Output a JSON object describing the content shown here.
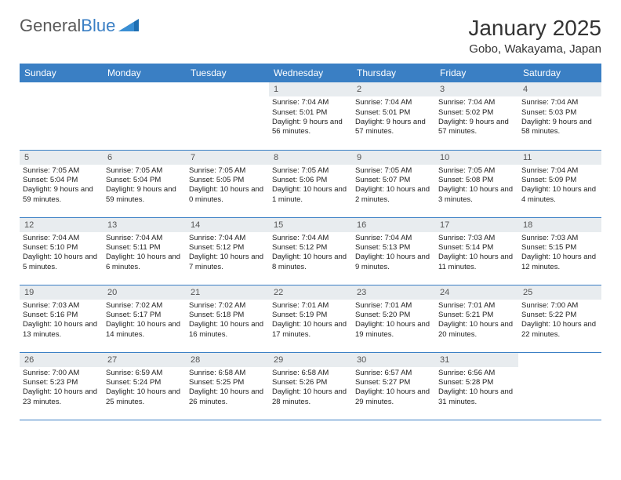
{
  "logo": {
    "text1": "General",
    "text2": "Blue",
    "icon_color": "#1f6fb2"
  },
  "title": "January 2025",
  "subtitle": "Gobo, Wakayama, Japan",
  "colors": {
    "header_bg": "#3a7fc4",
    "daynum_bg": "#e8ecef",
    "rule": "#3a7fc4"
  },
  "day_headers": [
    "Sunday",
    "Monday",
    "Tuesday",
    "Wednesday",
    "Thursday",
    "Friday",
    "Saturday"
  ],
  "weeks": [
    [
      {
        "empty": true
      },
      {
        "empty": true
      },
      {
        "empty": true
      },
      {
        "n": "1",
        "sr": "7:04 AM",
        "ss": "5:01 PM",
        "dh": "9",
        "dm": "56"
      },
      {
        "n": "2",
        "sr": "7:04 AM",
        "ss": "5:01 PM",
        "dh": "9",
        "dm": "57"
      },
      {
        "n": "3",
        "sr": "7:04 AM",
        "ss": "5:02 PM",
        "dh": "9",
        "dm": "57"
      },
      {
        "n": "4",
        "sr": "7:04 AM",
        "ss": "5:03 PM",
        "dh": "9",
        "dm": "58"
      }
    ],
    [
      {
        "n": "5",
        "sr": "7:05 AM",
        "ss": "5:04 PM",
        "dh": "9",
        "dm": "59"
      },
      {
        "n": "6",
        "sr": "7:05 AM",
        "ss": "5:04 PM",
        "dh": "9",
        "dm": "59"
      },
      {
        "n": "7",
        "sr": "7:05 AM",
        "ss": "5:05 PM",
        "dh": "10",
        "dm": "0"
      },
      {
        "n": "8",
        "sr": "7:05 AM",
        "ss": "5:06 PM",
        "dh": "10",
        "dm": "1"
      },
      {
        "n": "9",
        "sr": "7:05 AM",
        "ss": "5:07 PM",
        "dh": "10",
        "dm": "2"
      },
      {
        "n": "10",
        "sr": "7:05 AM",
        "ss": "5:08 PM",
        "dh": "10",
        "dm": "3"
      },
      {
        "n": "11",
        "sr": "7:04 AM",
        "ss": "5:09 PM",
        "dh": "10",
        "dm": "4"
      }
    ],
    [
      {
        "n": "12",
        "sr": "7:04 AM",
        "ss": "5:10 PM",
        "dh": "10",
        "dm": "5"
      },
      {
        "n": "13",
        "sr": "7:04 AM",
        "ss": "5:11 PM",
        "dh": "10",
        "dm": "6"
      },
      {
        "n": "14",
        "sr": "7:04 AM",
        "ss": "5:12 PM",
        "dh": "10",
        "dm": "7"
      },
      {
        "n": "15",
        "sr": "7:04 AM",
        "ss": "5:12 PM",
        "dh": "10",
        "dm": "8"
      },
      {
        "n": "16",
        "sr": "7:04 AM",
        "ss": "5:13 PM",
        "dh": "10",
        "dm": "9"
      },
      {
        "n": "17",
        "sr": "7:03 AM",
        "ss": "5:14 PM",
        "dh": "10",
        "dm": "11"
      },
      {
        "n": "18",
        "sr": "7:03 AM",
        "ss": "5:15 PM",
        "dh": "10",
        "dm": "12"
      }
    ],
    [
      {
        "n": "19",
        "sr": "7:03 AM",
        "ss": "5:16 PM",
        "dh": "10",
        "dm": "13"
      },
      {
        "n": "20",
        "sr": "7:02 AM",
        "ss": "5:17 PM",
        "dh": "10",
        "dm": "14"
      },
      {
        "n": "21",
        "sr": "7:02 AM",
        "ss": "5:18 PM",
        "dh": "10",
        "dm": "16"
      },
      {
        "n": "22",
        "sr": "7:01 AM",
        "ss": "5:19 PM",
        "dh": "10",
        "dm": "17"
      },
      {
        "n": "23",
        "sr": "7:01 AM",
        "ss": "5:20 PM",
        "dh": "10",
        "dm": "19"
      },
      {
        "n": "24",
        "sr": "7:01 AM",
        "ss": "5:21 PM",
        "dh": "10",
        "dm": "20"
      },
      {
        "n": "25",
        "sr": "7:00 AM",
        "ss": "5:22 PM",
        "dh": "10",
        "dm": "22"
      }
    ],
    [
      {
        "n": "26",
        "sr": "7:00 AM",
        "ss": "5:23 PM",
        "dh": "10",
        "dm": "23"
      },
      {
        "n": "27",
        "sr": "6:59 AM",
        "ss": "5:24 PM",
        "dh": "10",
        "dm": "25"
      },
      {
        "n": "28",
        "sr": "6:58 AM",
        "ss": "5:25 PM",
        "dh": "10",
        "dm": "26"
      },
      {
        "n": "29",
        "sr": "6:58 AM",
        "ss": "5:26 PM",
        "dh": "10",
        "dm": "28"
      },
      {
        "n": "30",
        "sr": "6:57 AM",
        "ss": "5:27 PM",
        "dh": "10",
        "dm": "29"
      },
      {
        "n": "31",
        "sr": "6:56 AM",
        "ss": "5:28 PM",
        "dh": "10",
        "dm": "31"
      },
      {
        "empty": true
      }
    ]
  ]
}
